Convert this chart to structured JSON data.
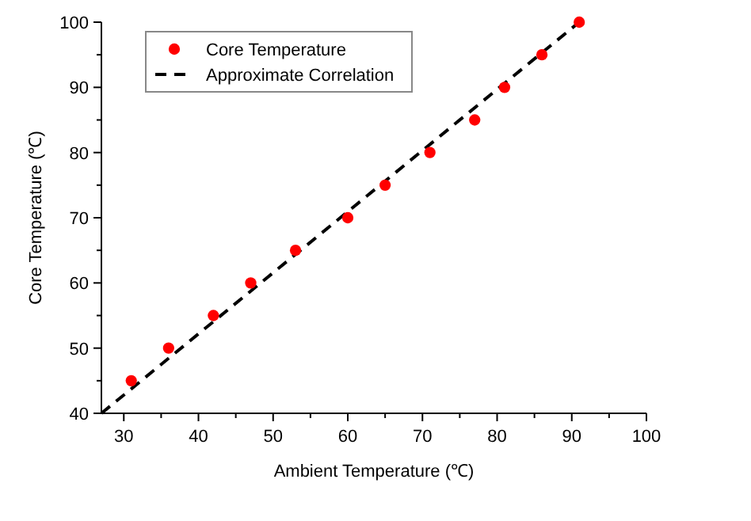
{
  "chart_data": {
    "type": "scatter",
    "xlabel": "Ambient Temperature (℃)",
    "ylabel": "Core Temperature (℃)",
    "xlim": [
      27,
      100
    ],
    "xticks": [
      30,
      40,
      50,
      60,
      70,
      80,
      90,
      100
    ],
    "ylim": [
      40,
      100
    ],
    "yticks": [
      40,
      50,
      60,
      70,
      80,
      90,
      100
    ],
    "legend": "top left",
    "grid": false,
    "series": [
      {
        "name": "Core Temperature",
        "marker": "circle",
        "color": "#ff0000",
        "x": [
          31,
          36,
          42,
          47,
          53,
          60,
          65,
          71,
          77,
          81,
          86,
          91
        ],
        "values": [
          45,
          50,
          55,
          60,
          65,
          70,
          75,
          80,
          85,
          90,
          95,
          100
        ]
      },
      {
        "name": "Approximate Correlation",
        "type": "line",
        "line_style": "dashed",
        "color": "#000000",
        "x": [
          27,
          91
        ],
        "values": [
          40,
          100
        ]
      }
    ]
  }
}
